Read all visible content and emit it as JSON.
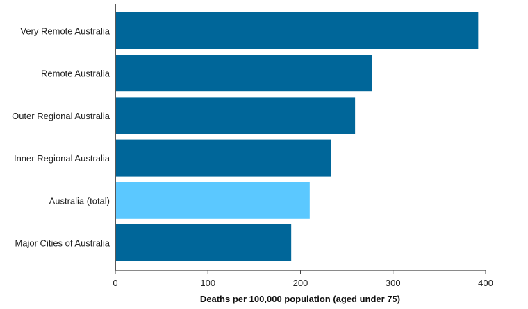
{
  "chart_data": {
    "type": "bar",
    "orientation": "horizontal",
    "title": "",
    "categories": [
      "Very Remote Australia",
      "Remote Australia",
      "Outer Regional Australia",
      "Inner Regional Australia",
      "Australia (total)",
      "Major Cities of Australia"
    ],
    "values": [
      392,
      277,
      259,
      233,
      210,
      190
    ],
    "colors": [
      "#006699",
      "#006699",
      "#006699",
      "#006699",
      "#5BC8FF",
      "#006699"
    ],
    "xlabel": "Deaths per 100,000 population (aged under 75)",
    "ylabel": "",
    "xlim": [
      0,
      400
    ],
    "xticks": [
      "0",
      "100",
      "200",
      "300",
      "400"
    ],
    "grid": false
  }
}
